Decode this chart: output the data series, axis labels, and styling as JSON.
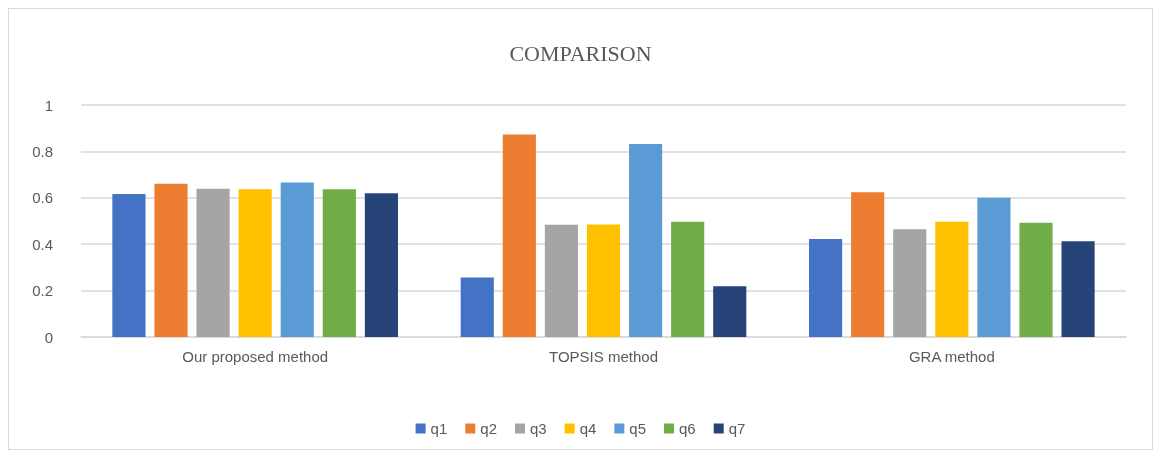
{
  "chart_data": {
    "type": "bar",
    "title": "COMPARISON",
    "categories": [
      "Our proposed method",
      "TOPSIS method",
      "GRA method"
    ],
    "series": [
      {
        "name": "q1",
        "color": "#4472c4",
        "values": [
          0.616,
          0.257,
          0.422
        ]
      },
      {
        "name": "q2",
        "color": "#ed7d31",
        "values": [
          0.661,
          0.873,
          0.624
        ]
      },
      {
        "name": "q3",
        "color": "#a5a5a5",
        "values": [
          0.639,
          0.484,
          0.464
        ]
      },
      {
        "name": "q4",
        "color": "#ffc000",
        "values": [
          0.637,
          0.485,
          0.497
        ]
      },
      {
        "name": "q5",
        "color": "#5b9bd5",
        "values": [
          0.666,
          0.832,
          0.6
        ]
      },
      {
        "name": "q6",
        "color": "#70ad47",
        "values": [
          0.637,
          0.497,
          0.492
        ]
      },
      {
        "name": "q7",
        "color": "#264478",
        "values": [
          0.62,
          0.219,
          0.413
        ]
      }
    ],
    "ylim": [
      0,
      1
    ],
    "yticks": [
      0,
      0.2,
      0.4,
      0.6,
      0.8,
      1
    ],
    "grid": "y",
    "legend": "bottom"
  }
}
